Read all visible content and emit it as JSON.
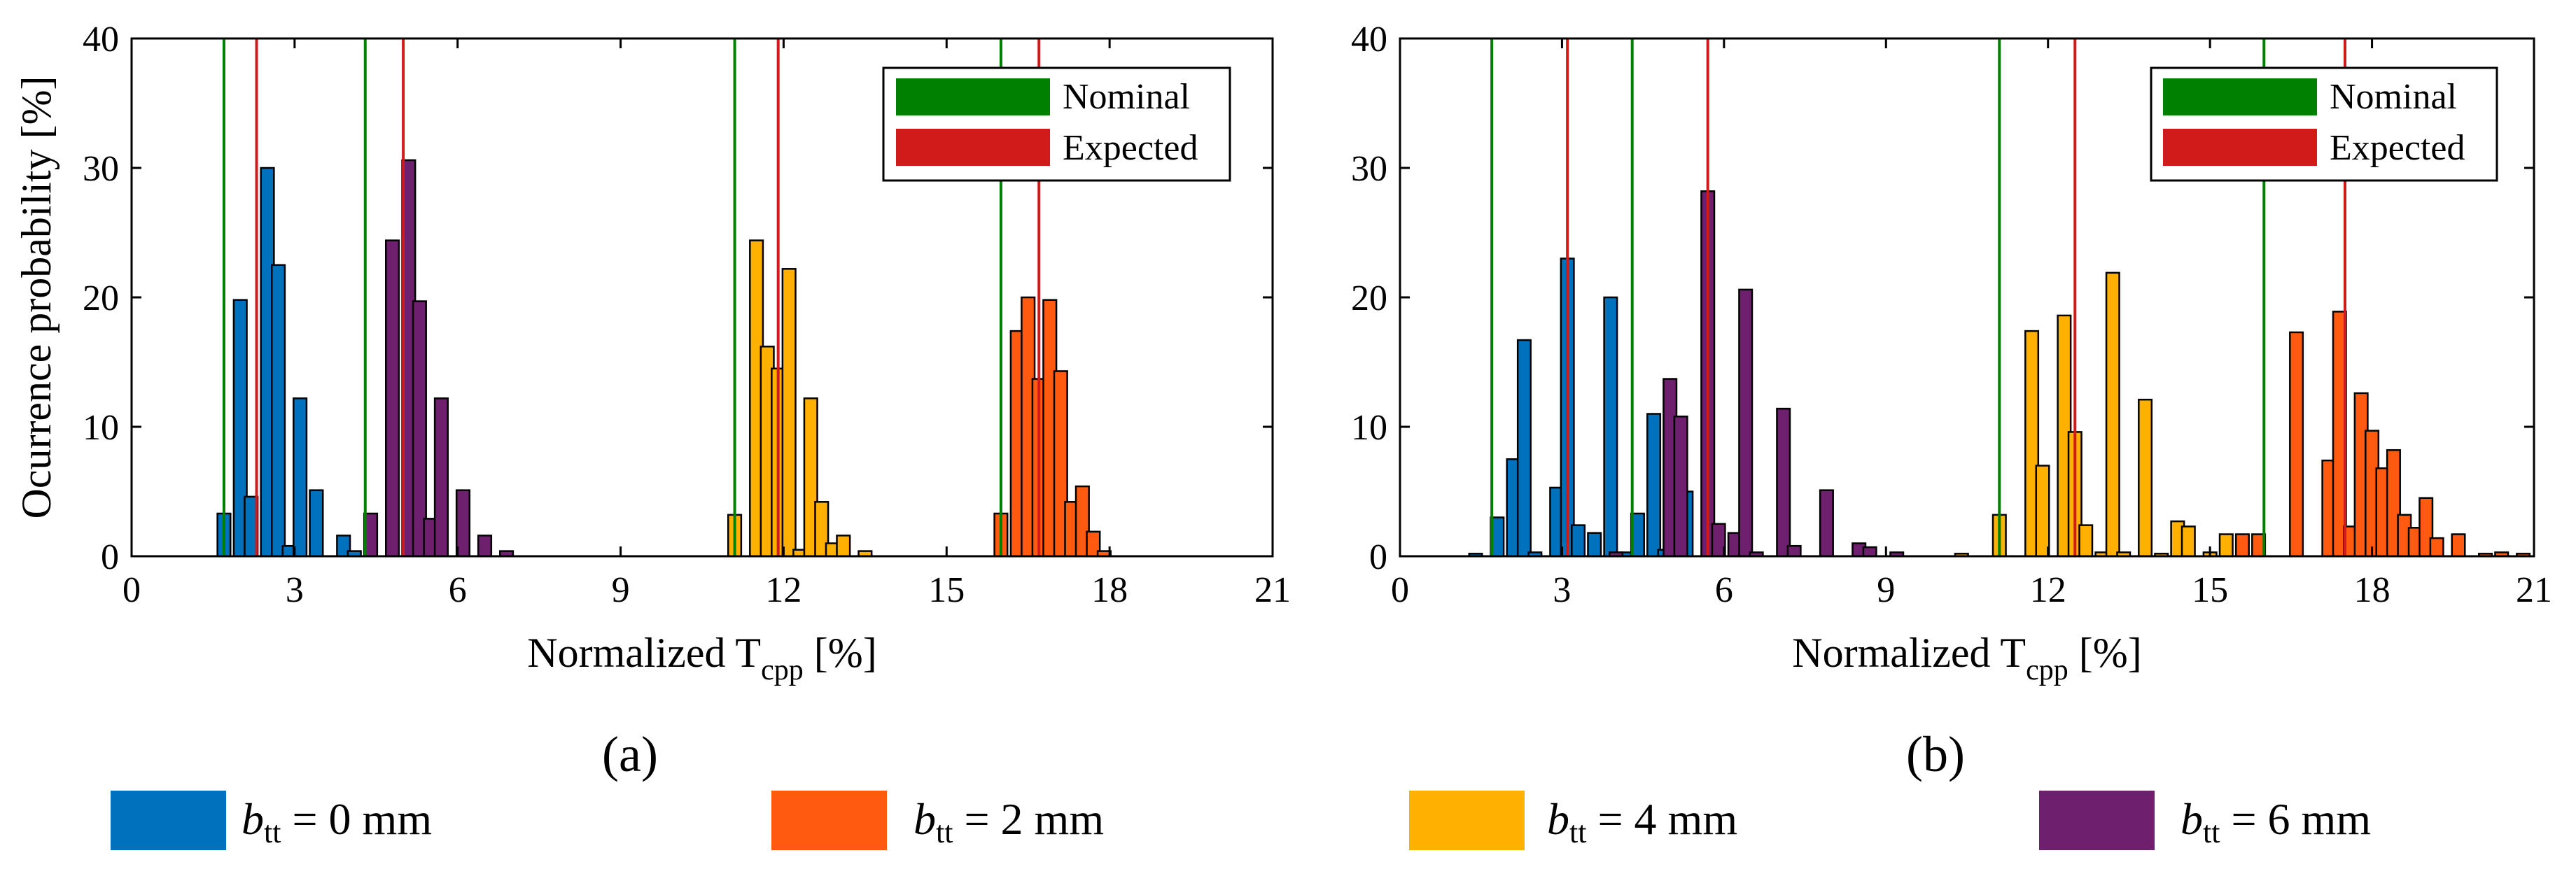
{
  "panels": [
    {
      "panel_label": "(a)",
      "legend": [
        {
          "label": "Nominal",
          "color": "#008000"
        },
        {
          "label": "Expected",
          "color": "#d11a1a"
        }
      ]
    },
    {
      "panel_label": "(b)",
      "legend": [
        {
          "label": "Nominal",
          "color": "#008000"
        },
        {
          "label": "Expected",
          "color": "#d11a1a"
        }
      ]
    }
  ],
  "shared_legend": [
    {
      "var": "b",
      "sub": "tt",
      "rest": " = 0 mm",
      "color": "#0072bd"
    },
    {
      "var": "b",
      "sub": "tt",
      "rest": " = 2 mm",
      "color": "#ff5a0f"
    },
    {
      "var": "b",
      "sub": "tt",
      "rest": " = 4 mm",
      "color": "#ffb000"
    },
    {
      "var": "b",
      "sub": "tt",
      "rest": " = 6 mm",
      "color": "#6e1f6e"
    }
  ],
  "chart_data": [
    {
      "type": "bar",
      "title": "",
      "xlabel": "Normalized T",
      "xlabel_sub": "cpp",
      "xlabel_unit": " [%]",
      "ylabel": "Ocurrence probability [%]",
      "xlim": [
        0,
        21
      ],
      "ylim": [
        0,
        40
      ],
      "xticks": [
        0,
        3,
        6,
        9,
        12,
        15,
        18,
        21
      ],
      "yticks": [
        0,
        10,
        20,
        30,
        40
      ],
      "bar_width": 0.24,
      "series": [
        {
          "name": "b_tt = 0 mm",
          "color": "#0072bd",
          "bars": [
            [
              1.7,
              3.3
            ],
            [
              2.0,
              19.8
            ],
            [
              2.2,
              4.6
            ],
            [
              2.5,
              30.0
            ],
            [
              2.7,
              22.5
            ],
            [
              2.9,
              0.8
            ],
            [
              3.1,
              12.2
            ],
            [
              3.4,
              5.1
            ],
            [
              3.9,
              1.6
            ],
            [
              4.1,
              0.4
            ]
          ]
        },
        {
          "name": "b_tt = 6 mm",
          "color": "#6e1f6e",
          "bars": [
            [
              4.4,
              3.3
            ],
            [
              4.8,
              24.4
            ],
            [
              5.1,
              30.6
            ],
            [
              5.3,
              19.7
            ],
            [
              5.5,
              2.9
            ],
            [
              5.7,
              12.2
            ],
            [
              6.1,
              5.1
            ],
            [
              6.5,
              1.6
            ],
            [
              6.9,
              0.4
            ]
          ]
        },
        {
          "name": "b_tt = 4 mm",
          "color": "#ffb000",
          "bars": [
            [
              11.1,
              3.2
            ],
            [
              11.5,
              24.4
            ],
            [
              11.7,
              16.2
            ],
            [
              11.9,
              14.5
            ],
            [
              12.1,
              22.2
            ],
            [
              12.3,
              0.5
            ],
            [
              12.5,
              12.2
            ],
            [
              12.7,
              4.2
            ],
            [
              12.9,
              1.0
            ],
            [
              13.1,
              1.6
            ],
            [
              13.5,
              0.4
            ]
          ]
        },
        {
          "name": "b_tt = 2 mm",
          "color": "#ff5a0f",
          "bars": [
            [
              16.0,
              3.3
            ],
            [
              16.3,
              17.4
            ],
            [
              16.5,
              20.0
            ],
            [
              16.7,
              13.7
            ],
            [
              16.9,
              19.8
            ],
            [
              17.1,
              14.3
            ],
            [
              17.3,
              4.2
            ],
            [
              17.5,
              5.4
            ],
            [
              17.7,
              1.9
            ],
            [
              17.9,
              0.4
            ]
          ]
        }
      ],
      "nominal_lines": [
        1.7,
        4.3,
        11.1,
        16.0
      ],
      "expected_lines": [
        2.3,
        5.0,
        11.9,
        16.7
      ]
    },
    {
      "type": "bar",
      "title": "",
      "xlabel": "Normalized T",
      "xlabel_sub": "cpp",
      "xlabel_unit": " [%]",
      "ylabel": "",
      "xlim": [
        0,
        21
      ],
      "ylim": [
        0,
        40
      ],
      "xticks": [
        0,
        3,
        6,
        9,
        12,
        15,
        18,
        21
      ],
      "yticks": [
        0,
        10,
        20,
        30,
        40
      ],
      "bar_width": 0.24,
      "series": [
        {
          "name": "b_tt = 0 mm",
          "color": "#0072bd",
          "bars": [
            [
              1.4,
              0.2
            ],
            [
              1.8,
              3.0
            ],
            [
              2.1,
              7.5
            ],
            [
              2.3,
              16.7
            ],
            [
              2.5,
              0.3
            ],
            [
              2.9,
              5.3
            ],
            [
              3.1,
              23.0
            ],
            [
              3.3,
              2.4
            ],
            [
              3.6,
              1.8
            ],
            [
              3.9,
              20.0
            ],
            [
              4.2,
              0.3
            ],
            [
              4.4,
              3.3
            ],
            [
              4.7,
              11.0
            ],
            [
              4.9,
              0.5
            ],
            [
              5.3,
              5.0
            ]
          ]
        },
        {
          "name": "b_tt = 6 mm",
          "color": "#6e1f6e",
          "bars": [
            [
              4.0,
              0.3
            ],
            [
              5.0,
              13.7
            ],
            [
              5.2,
              10.8
            ],
            [
              5.7,
              28.2
            ],
            [
              5.9,
              2.5
            ],
            [
              6.2,
              1.8
            ],
            [
              6.4,
              20.6
            ],
            [
              6.6,
              0.3
            ],
            [
              7.1,
              11.4
            ],
            [
              7.3,
              0.8
            ],
            [
              7.9,
              5.1
            ],
            [
              8.5,
              1.0
            ],
            [
              8.7,
              0.7
            ],
            [
              9.2,
              0.3
            ]
          ]
        },
        {
          "name": "b_tt = 4 mm",
          "color": "#ffb000",
          "bars": [
            [
              10.4,
              0.2
            ],
            [
              11.1,
              3.2
            ],
            [
              11.7,
              17.4
            ],
            [
              11.9,
              7.0
            ],
            [
              12.3,
              18.6
            ],
            [
              12.5,
              9.6
            ],
            [
              12.7,
              2.4
            ],
            [
              13.0,
              0.3
            ],
            [
              13.2,
              21.9
            ],
            [
              13.4,
              0.3
            ],
            [
              13.8,
              12.1
            ],
            [
              14.1,
              0.2
            ],
            [
              14.4,
              2.7
            ],
            [
              14.6,
              2.3
            ],
            [
              15.0,
              0.3
            ],
            [
              15.3,
              1.7
            ]
          ]
        },
        {
          "name": "b_tt = 2 mm",
          "color": "#ff5a0f",
          "bars": [
            [
              15.6,
              1.7
            ],
            [
              15.9,
              1.7
            ],
            [
              16.6,
              17.3
            ],
            [
              17.2,
              7.4
            ],
            [
              17.4,
              18.9
            ],
            [
              17.6,
              2.3
            ],
            [
              17.8,
              12.6
            ],
            [
              18.0,
              9.7
            ],
            [
              18.2,
              6.8
            ],
            [
              18.4,
              8.2
            ],
            [
              18.6,
              3.2
            ],
            [
              18.8,
              2.2
            ],
            [
              19.0,
              4.5
            ],
            [
              19.2,
              1.4
            ],
            [
              19.6,
              1.7
            ],
            [
              20.1,
              0.2
            ],
            [
              20.4,
              0.3
            ],
            [
              20.8,
              0.2
            ]
          ]
        }
      ],
      "nominal_lines": [
        1.7,
        4.3,
        11.1,
        16.0
      ],
      "expected_lines": [
        3.1,
        5.7,
        12.5,
        17.5
      ]
    }
  ]
}
